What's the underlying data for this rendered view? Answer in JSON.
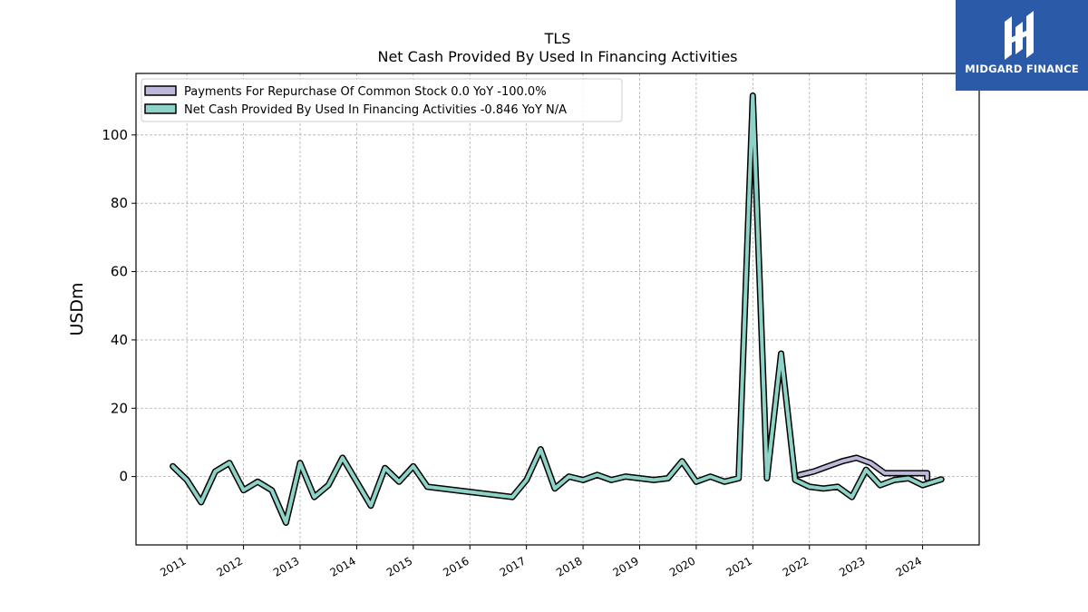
{
  "chart_data": {
    "type": "line",
    "title": "TLS",
    "subtitle": "Net Cash Provided By Used In Financing Activities",
    "ylabel": "USDm",
    "xlabel": "",
    "ylim": [
      -20,
      118
    ],
    "yticks": [
      0,
      20,
      40,
      60,
      80,
      100
    ],
    "xlim": [
      2010.1,
      2025.0
    ],
    "xticks": [
      "2011",
      "2012",
      "2013",
      "2014",
      "2015",
      "2016",
      "2017",
      "2018",
      "2019",
      "2020",
      "2021",
      "2022",
      "2023",
      "2024"
    ],
    "grid": true,
    "legend_position": "top-left",
    "series": [
      {
        "name": "Payments For Repurchase Of Common Stock  0.0 YoY -100.0%",
        "color": "#bcb8d9",
        "points": [
          [
            2021.83,
            0.5
          ],
          [
            2022.08,
            1.5
          ],
          [
            2022.33,
            3.0
          ],
          [
            2022.58,
            4.5
          ],
          [
            2022.83,
            5.5
          ],
          [
            2023.08,
            4.0
          ],
          [
            2023.33,
            1.0
          ],
          [
            2023.58,
            1.0
          ],
          [
            2023.83,
            1.0
          ],
          [
            2024.08,
            1.0
          ],
          [
            2024.08,
            -0.5
          ]
        ]
      },
      {
        "name": "Net Cash Provided By Used In Financing Activities  -0.846 YoY N/A",
        "color": "#8dd3c7",
        "points": [
          [
            2010.75,
            3.0
          ],
          [
            2011.0,
            -1.0
          ],
          [
            2011.25,
            -7.5
          ],
          [
            2011.5,
            1.5
          ],
          [
            2011.75,
            4.0
          ],
          [
            2012.0,
            -4.0
          ],
          [
            2012.25,
            -1.5
          ],
          [
            2012.5,
            -4.0
          ],
          [
            2012.75,
            -13.5
          ],
          [
            2013.0,
            4.0
          ],
          [
            2013.25,
            -6.0
          ],
          [
            2013.5,
            -2.5
          ],
          [
            2013.75,
            5.5
          ],
          [
            2014.0,
            -1.5
          ],
          [
            2014.25,
            -8.5
          ],
          [
            2014.5,
            2.5
          ],
          [
            2014.75,
            -1.5
          ],
          [
            2015.0,
            3.0
          ],
          [
            2015.25,
            -3.0
          ],
          [
            2016.75,
            -6.0
          ],
          [
            2017.0,
            -1.0
          ],
          [
            2017.25,
            8.0
          ],
          [
            2017.5,
            -3.5
          ],
          [
            2017.75,
            0.0
          ],
          [
            2018.0,
            -1.0
          ],
          [
            2018.25,
            0.5
          ],
          [
            2018.5,
            -1.0
          ],
          [
            2018.75,
            0.0
          ],
          [
            2019.0,
            -0.5
          ],
          [
            2019.25,
            -1.0
          ],
          [
            2019.5,
            -0.5
          ],
          [
            2019.75,
            4.5
          ],
          [
            2020.0,
            -1.5
          ],
          [
            2020.25,
            0.0
          ],
          [
            2020.5,
            -1.5
          ],
          [
            2020.75,
            -0.5
          ],
          [
            2021.0,
            111.5
          ],
          [
            2021.25,
            -0.5
          ],
          [
            2021.5,
            36.0
          ],
          [
            2021.75,
            -1.0
          ],
          [
            2022.0,
            -3.0
          ],
          [
            2022.25,
            -3.5
          ],
          [
            2022.5,
            -3.0
          ],
          [
            2022.75,
            -6.0
          ],
          [
            2023.0,
            2.0
          ],
          [
            2023.25,
            -2.5
          ],
          [
            2023.5,
            -1.0
          ],
          [
            2023.75,
            -0.5
          ],
          [
            2024.0,
            -2.5
          ],
          [
            2024.33,
            -0.8
          ]
        ]
      }
    ]
  },
  "logo": {
    "text": "MIDGARD FINANCE",
    "background": "#2b5aa8"
  }
}
